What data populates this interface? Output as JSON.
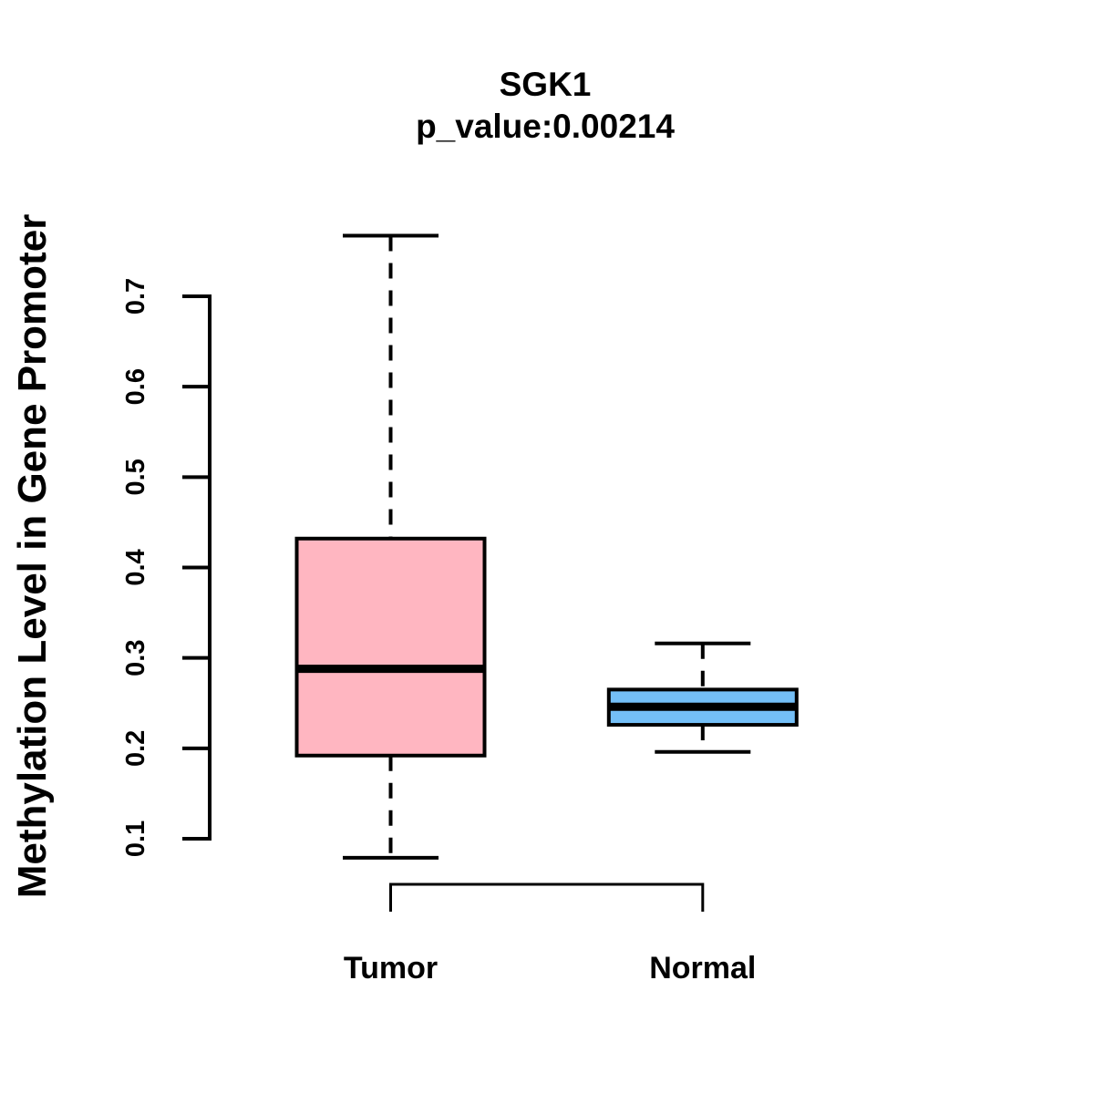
{
  "figure": {
    "background_color": "#FFFFFF",
    "stroke_color": "#000000"
  },
  "chart_data": {
    "type": "boxplot",
    "title": "SGK1",
    "subtitle": "p_value:0.00214",
    "p_value": 0.00214,
    "gene": "SGK1",
    "ylabel": "Methylation Level in Gene Promoter",
    "xlabel": "",
    "y_axis": {
      "tick_values": [
        0.7,
        0.6,
        0.5,
        0.4,
        0.3,
        0.2,
        0.1
      ],
      "tick_labels": [
        "0.7",
        "0.6",
        "0.5",
        "0.4",
        "0.3",
        "0.2",
        "0.1"
      ],
      "axis_range": [
        0.1,
        0.7
      ],
      "grid": "off"
    },
    "categories": [
      "Tumor",
      "Normal"
    ],
    "series": [
      {
        "name": "Tumor",
        "fill_color": "#FFB6C1",
        "stats": {
          "whisker_low": 0.079,
          "q1": 0.192,
          "median": 0.288,
          "q3": 0.432,
          "whisker_high": 0.767
        },
        "outliers": []
      },
      {
        "name": "Normal",
        "fill_color": "#74BFF7",
        "stats": {
          "whisker_low": 0.196,
          "q1": 0.226,
          "median": 0.246,
          "q3": 0.265,
          "whisker_high": 0.316
        },
        "outliers": []
      }
    ],
    "annotations": {
      "comparison_bracket": {
        "from": "Tumor",
        "to": "Normal"
      }
    },
    "legend": "none"
  }
}
